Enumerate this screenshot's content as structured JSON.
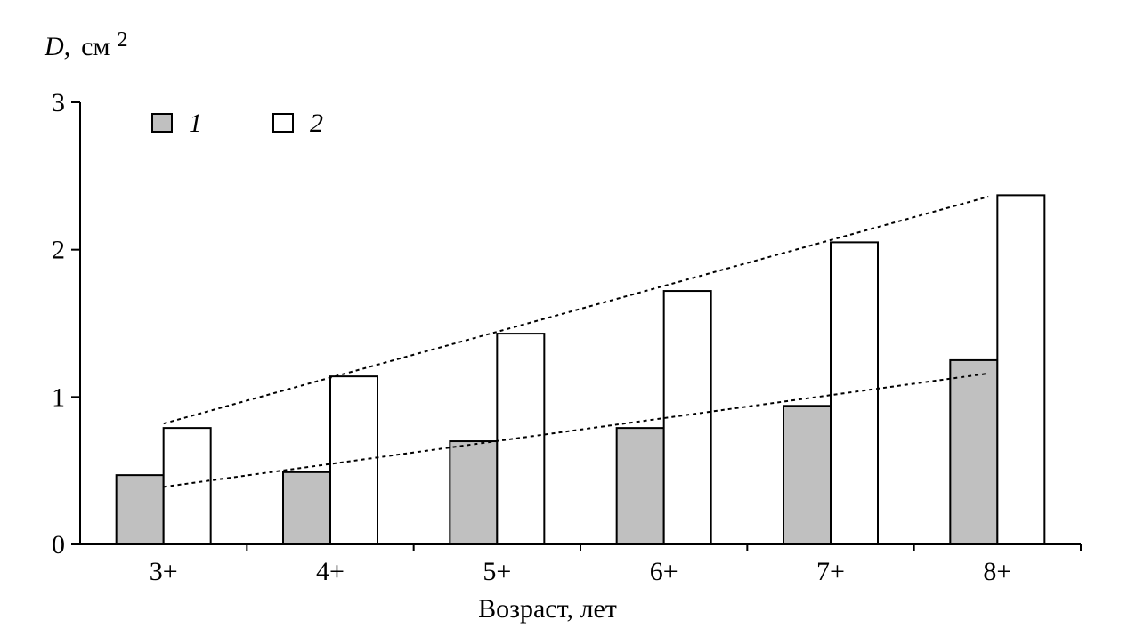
{
  "chart_data": {
    "type": "bar",
    "title": "",
    "xlabel": "Возраст, лет",
    "ylabel": {
      "variable": "D,",
      "unit": "см",
      "exponent": "2"
    },
    "categories": [
      "3+",
      "4+",
      "5+",
      "6+",
      "7+",
      "8+"
    ],
    "series": [
      {
        "name": "1",
        "values": [
          0.47,
          0.49,
          0.7,
          0.79,
          0.94,
          1.25
        ],
        "color": "#c0c0c0",
        "trend": [
          0.39,
          1.16
        ]
      },
      {
        "name": "2",
        "values": [
          0.79,
          1.14,
          1.43,
          1.72,
          2.05,
          2.37
        ],
        "color": "#ffffff",
        "trend": [
          0.82,
          2.36
        ]
      }
    ],
    "ylim": [
      0,
      3
    ],
    "yticks": [
      "0",
      "1",
      "2",
      "3"
    ],
    "grid": false,
    "legend": "top-left",
    "trendlines": "dashed linear"
  }
}
